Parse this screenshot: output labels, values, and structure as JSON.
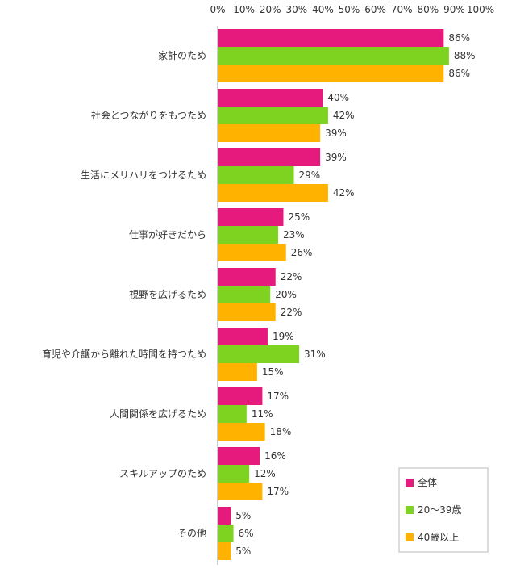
{
  "chart_data": {
    "type": "bar",
    "orientation": "horizontal",
    "xlim": [
      0,
      100
    ],
    "x_ticks": [
      "0%",
      "10%",
      "20%",
      "30%",
      "40%",
      "50%",
      "60%",
      "70%",
      "80%",
      "90%",
      "100%"
    ],
    "x_axis_position": "top",
    "grid": false,
    "legend_position": "bottom-right",
    "categories": [
      "家計のため",
      "社会とつながりをもつため",
      "生活にメリハリをつけるため",
      "仕事が好きだから",
      "視野を広げるため",
      "育児や介護から離れた時間を持つため",
      "人間関係を広げるため",
      "スキルアップのため",
      "その他"
    ],
    "series": [
      {
        "name": "全体",
        "color": "#e6197d",
        "values": [
          86,
          40,
          39,
          25,
          22,
          19,
          17,
          16,
          5
        ]
      },
      {
        "name": "20～39歳",
        "color": "#7ed321",
        "values": [
          88,
          42,
          29,
          23,
          20,
          31,
          11,
          12,
          6
        ]
      },
      {
        "name": "40歳以上",
        "color": "#ffb300",
        "values": [
          86,
          39,
          42,
          26,
          22,
          15,
          18,
          17,
          5
        ]
      }
    ]
  }
}
